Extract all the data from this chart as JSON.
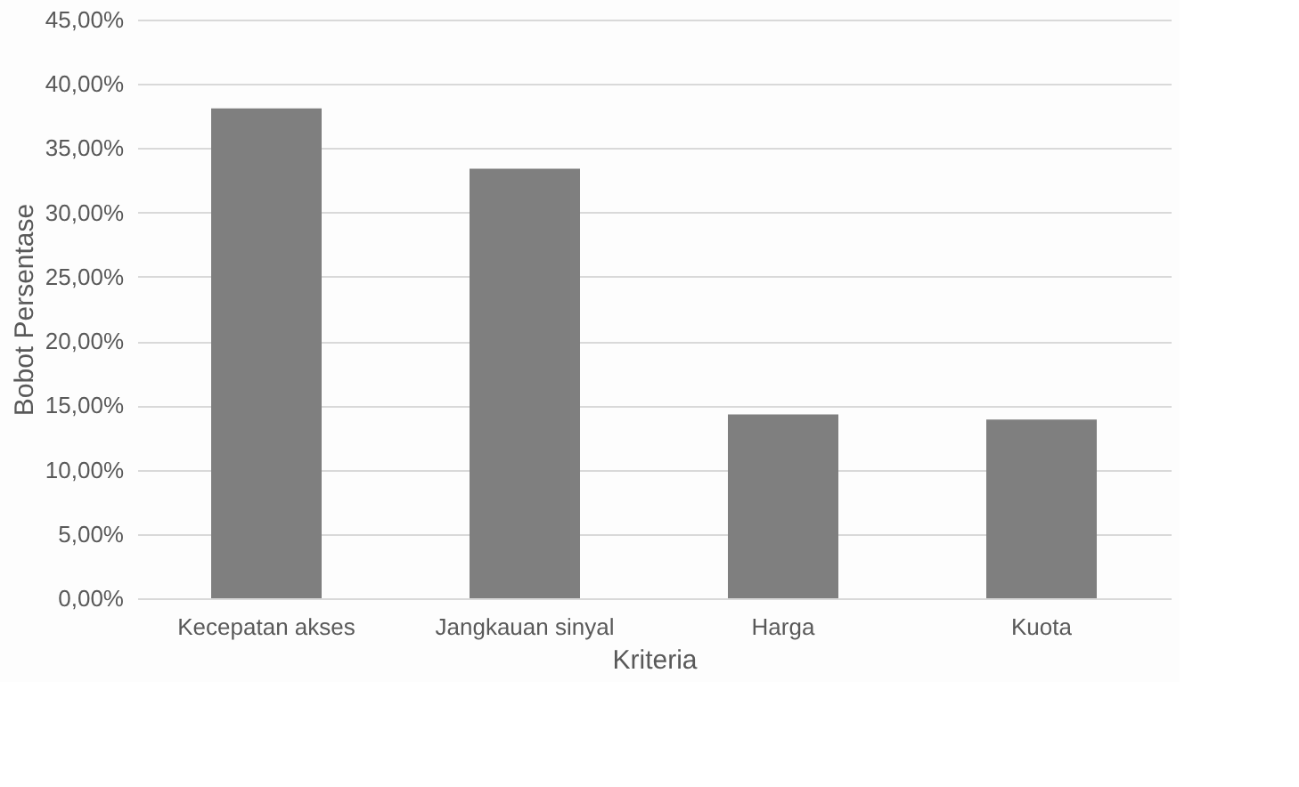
{
  "chart_data": {
    "type": "bar",
    "xlabel": "Kriteria",
    "ylabel": "Bobot Persentase",
    "categories": [
      "Kecepatan akses",
      "Jangkauan sinyal",
      "Harga",
      "Kuota"
    ],
    "values": [
      38.1,
      33.4,
      14.3,
      13.9
    ],
    "color": "#7f7f7f",
    "ylim": [
      0,
      45
    ],
    "yticks": [
      {
        "value": 0,
        "label": "0,00%"
      },
      {
        "value": 5,
        "label": "5,00%"
      },
      {
        "value": 10,
        "label": "10,00%"
      },
      {
        "value": 15,
        "label": "15,00%"
      },
      {
        "value": 20,
        "label": "20,00%"
      },
      {
        "value": 25,
        "label": "25,00%"
      },
      {
        "value": 30,
        "label": "30,00%"
      },
      {
        "value": 35,
        "label": "35,00%"
      },
      {
        "value": 40,
        "label": "40,00%"
      },
      {
        "value": 45,
        "label": "45,00%"
      }
    ],
    "grid": "y"
  }
}
